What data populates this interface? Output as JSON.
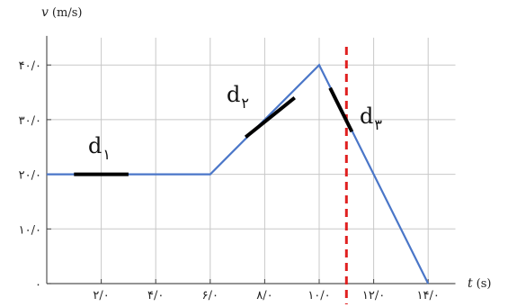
{
  "chart_data": {
    "type": "line",
    "xlabel_var": "t",
    "xlabel_unit": "(s)",
    "ylabel_var": "v",
    "ylabel_unit": "(m/s)",
    "xlim": [
      0,
      15
    ],
    "ylim": [
      0,
      45
    ],
    "x_ticks": [
      {
        "value": 2,
        "label": "۲/۰"
      },
      {
        "value": 4,
        "label": "۴/۰"
      },
      {
        "value": 6,
        "label": "۶/۰"
      },
      {
        "value": 8,
        "label": "۸/۰"
      },
      {
        "value": 10,
        "label": "۱۰/۰"
      },
      {
        "value": 12,
        "label": "۱۲/۰"
      },
      {
        "value": 14,
        "label": "۱۴/۰"
      }
    ],
    "y_ticks": [
      {
        "value": 0,
        "label": "۰"
      },
      {
        "value": 10,
        "label": "۱۰/۰"
      },
      {
        "value": 20,
        "label": "۲۰/۰"
      },
      {
        "value": 30,
        "label": "۳۰/۰"
      },
      {
        "value": 40,
        "label": "۴۰/۰"
      }
    ],
    "grid": true,
    "series": [
      {
        "color": "#4a76c8",
        "points": [
          [
            0,
            20
          ],
          [
            6,
            20
          ],
          [
            10,
            40
          ],
          [
            14,
            0
          ]
        ]
      }
    ],
    "marker_line": {
      "x": 11,
      "color": "#e02020",
      "style": "dashed"
    },
    "annotations": [
      {
        "text": "d",
        "subscript": "۱",
        "segment": [
          [
            1,
            20
          ],
          [
            3,
            20
          ]
        ]
      },
      {
        "text": "d",
        "subscript": "۲",
        "segment": [
          [
            7.3,
            26.8
          ],
          [
            9.1,
            34
          ]
        ]
      },
      {
        "text": "d",
        "subscript": "۳",
        "segment": [
          [
            10.4,
            35.8
          ],
          [
            11.2,
            27.8
          ]
        ]
      }
    ]
  }
}
